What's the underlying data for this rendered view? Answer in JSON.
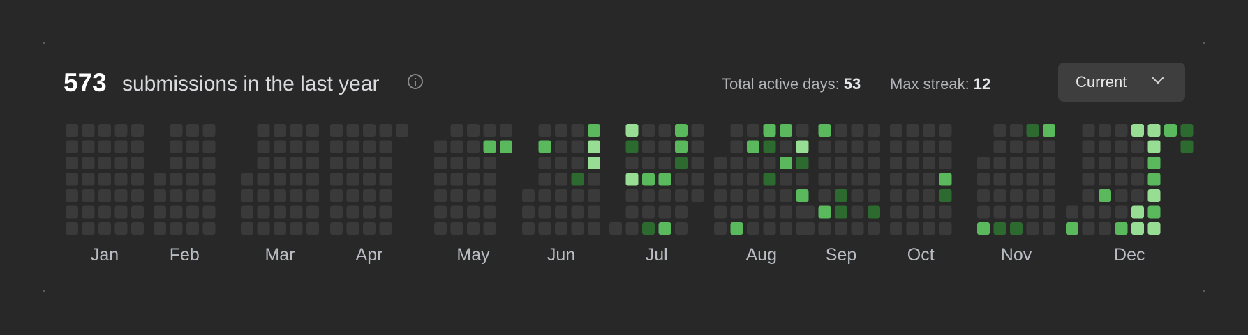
{
  "summary": {
    "count": "573",
    "label": "submissions in the last year",
    "info_icon": "info-icon"
  },
  "stats": {
    "active_days_label": "Total active days:",
    "active_days_value": "53",
    "max_streak_label": "Max streak:",
    "max_streak_value": "12"
  },
  "dropdown": {
    "selected": "Current",
    "icon": "chevron-down-icon"
  },
  "colors": {
    "empty": "#3a3a3a",
    "level1": "#2d6a2f",
    "level2": "#5ab95c",
    "level3": "#97de94",
    "background": "#282828"
  },
  "months": [
    {
      "label": "Jan",
      "weeks": [
        [
          0,
          0,
          0,
          0,
          0,
          0,
          0
        ],
        [
          0,
          0,
          0,
          0,
          0,
          0,
          0
        ],
        [
          0,
          0,
          0,
          0,
          0,
          0,
          0
        ],
        [
          0,
          0,
          0,
          0,
          0,
          0,
          0
        ],
        [
          0,
          0,
          0,
          0,
          0,
          0,
          0
        ]
      ],
      "start_dow": 0
    },
    {
      "label": "Feb",
      "weeks": [
        [
          0,
          0,
          0,
          0
        ],
        [
          0,
          0,
          0,
          0,
          0,
          0,
          0
        ],
        [
          0,
          0,
          0,
          0,
          0,
          0,
          0
        ],
        [
          0,
          0,
          0,
          0,
          0,
          0,
          0
        ]
      ],
      "start_dow": 3
    },
    {
      "label": "Mar",
      "weeks": [
        [
          0,
          0,
          0,
          0
        ],
        [
          0,
          0,
          0,
          0,
          0,
          0,
          0
        ],
        [
          0,
          0,
          0,
          0,
          0,
          0,
          0
        ],
        [
          0,
          0,
          0,
          0,
          0,
          0,
          0
        ],
        [
          0,
          0,
          0,
          0,
          0,
          0,
          0
        ]
      ],
      "start_dow": 3
    },
    {
      "label": "Apr",
      "weeks": [
        [
          0,
          0,
          0,
          0,
          0,
          0,
          0
        ],
        [
          0,
          0,
          0,
          0,
          0,
          0,
          0
        ],
        [
          0,
          0,
          0,
          0,
          0,
          0,
          0
        ],
        [
          0,
          0,
          0,
          0,
          0,
          0,
          0
        ],
        [
          0
        ]
      ],
      "start_dow": 0
    },
    {
      "label": "May",
      "weeks": [
        [
          0,
          0,
          0,
          0,
          0,
          0
        ],
        [
          0,
          0,
          0,
          0,
          0,
          0,
          0
        ],
        [
          0,
          0,
          0,
          0,
          0,
          0,
          0
        ],
        [
          0,
          2,
          0,
          0,
          0,
          0,
          0
        ],
        [
          0,
          2
        ]
      ],
      "start_dow": 1
    },
    {
      "label": "Jun",
      "weeks": [
        [
          0,
          0,
          0
        ],
        [
          0,
          2,
          0,
          0,
          0,
          0,
          0
        ],
        [
          0,
          0,
          0,
          0,
          0,
          0,
          0
        ],
        [
          0,
          0,
          0,
          1,
          0,
          0,
          0
        ],
        [
          2,
          3,
          3,
          0,
          0,
          0,
          0
        ]
      ],
      "start_dow": 4
    },
    {
      "label": "Jul",
      "weeks": [
        [
          0
        ],
        [
          3,
          1,
          0,
          3,
          0,
          0,
          0
        ],
        [
          0,
          0,
          0,
          2,
          0,
          0,
          1
        ],
        [
          0,
          0,
          0,
          2,
          0,
          0,
          2
        ],
        [
          2,
          2,
          1,
          0,
          0,
          0,
          0
        ],
        [
          0,
          0,
          0,
          0,
          0
        ]
      ],
      "start_dow": 6
    },
    {
      "label": "Aug",
      "weeks": [
        [
          0,
          0,
          0,
          0,
          0
        ],
        [
          0,
          0,
          0,
          0,
          0,
          0,
          2
        ],
        [
          0,
          2,
          0,
          0,
          0,
          0,
          0
        ],
        [
          2,
          1,
          0,
          1,
          0,
          0,
          0
        ],
        [
          2,
          0,
          2,
          0,
          0,
          0,
          0
        ],
        [
          0,
          3,
          1,
          0,
          2,
          0,
          0
        ]
      ],
      "start_dow": 2
    },
    {
      "label": "Sep",
      "weeks": [
        [
          0,
          0
        ],
        [
          2,
          0,
          0,
          0,
          0,
          2,
          0
        ],
        [
          0,
          0,
          0,
          0,
          1,
          1,
          0
        ],
        [
          0,
          0,
          0,
          0,
          0,
          0,
          0
        ],
        [
          0,
          0,
          0,
          0,
          0,
          1,
          0
        ]
      ],
      "start_dow": 5
    },
    {
      "label": "Oct",
      "weeks": [
        [
          0,
          0,
          0,
          0,
          0,
          0,
          0
        ],
        [
          0,
          0,
          0,
          0,
          0,
          0,
          0
        ],
        [
          0,
          0,
          0,
          0,
          0,
          0,
          0
        ],
        [
          0,
          0,
          0,
          2,
          1,
          0,
          0
        ]
      ],
      "start_dow": 0
    },
    {
      "label": "Nov",
      "weeks": [
        [
          0,
          0,
          0,
          0,
          2
        ],
        [
          0,
          0,
          0,
          0,
          0,
          0,
          1
        ],
        [
          0,
          0,
          0,
          0,
          0,
          0,
          1
        ],
        [
          1,
          0,
          0,
          0,
          0,
          0,
          0
        ],
        [
          2,
          0,
          0,
          0,
          0,
          0,
          0
        ]
      ],
      "start_dow": 2
    },
    {
      "label": "Dec",
      "weeks": [
        [
          0,
          2
        ],
        [
          0,
          0,
          0,
          0,
          0,
          0,
          0
        ],
        [
          0,
          0,
          0,
          0,
          2,
          0,
          0
        ],
        [
          0,
          0,
          0,
          0,
          0,
          0,
          2
        ],
        [
          3,
          0,
          0,
          0,
          0,
          3,
          3
        ],
        [
          3,
          3,
          2,
          2,
          3,
          2,
          3
        ],
        [
          2
        ],
        [
          1,
          1
        ]
      ],
      "start_dow": 5
    }
  ]
}
